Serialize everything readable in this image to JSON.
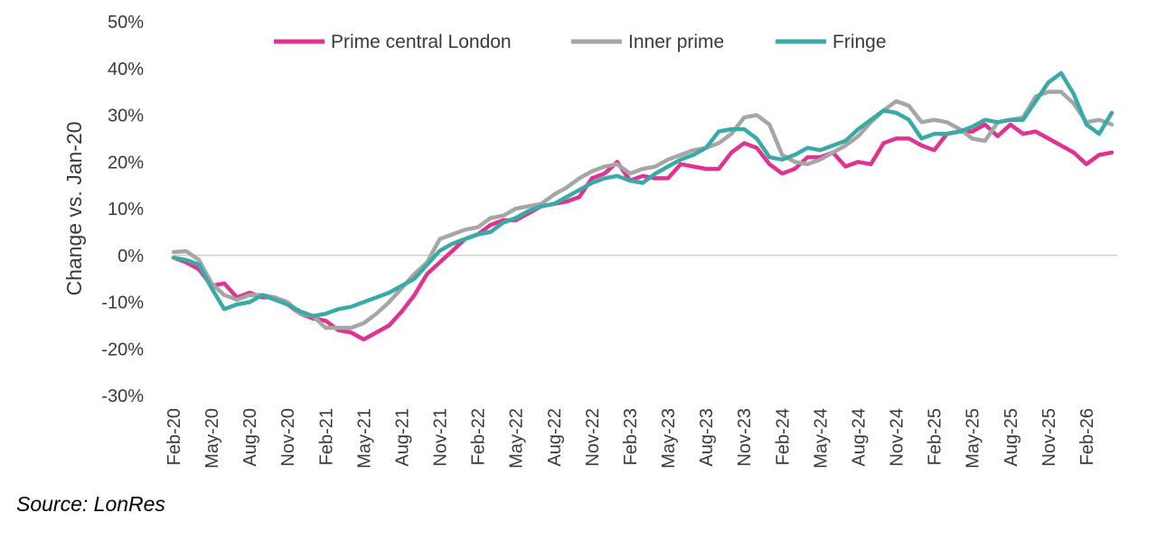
{
  "chart_data": {
    "type": "line",
    "title": "",
    "ylabel": "Change vs. Jan-20",
    "xlabel": "",
    "ylim": [
      -30,
      50
    ],
    "yticks": [
      -30,
      -20,
      -10,
      0,
      10,
      20,
      30,
      40,
      50
    ],
    "ytick_labels": [
      "-30%",
      "-20%",
      "-10%",
      "0%",
      "10%",
      "20%",
      "30%",
      "40%",
      "50%"
    ],
    "x_start": "Feb-20",
    "x_tick_labels": [
      "Feb-20",
      "May-20",
      "Aug-20",
      "Nov-20",
      "Feb-21",
      "May-21",
      "Aug-21",
      "Nov-21",
      "Feb-22",
      "May-22",
      "Aug-22",
      "Nov-22",
      "Feb-23",
      "May-23",
      "Aug-23",
      "Nov-23",
      "Feb-24",
      "May-24",
      "Aug-24",
      "Nov-24",
      "Feb-25",
      "May-25",
      "Aug-25",
      "Nov-25",
      "Feb-26"
    ],
    "legend_position": "top",
    "series": [
      {
        "name": "Prime central London",
        "color": "#e0338f",
        "values": [
          -0.5,
          -1.5,
          -3,
          -6.5,
          -6,
          -9,
          -8,
          -9,
          -9,
          -10.5,
          -12.5,
          -13.5,
          -14,
          -16,
          -16.5,
          -18,
          -16.5,
          -15,
          -12,
          -8.5,
          -4,
          -1.5,
          1,
          3.5,
          4.5,
          6.5,
          7.5,
          7.5,
          9,
          10.5,
          11,
          11.5,
          12.5,
          16.5,
          17.5,
          20,
          16,
          17,
          16.5,
          16.5,
          19.5,
          19,
          18.5,
          18.5,
          22,
          24,
          23,
          19.5,
          17.5,
          18.5,
          21,
          21,
          22,
          19,
          20,
          19.5,
          24,
          25,
          25,
          23.5,
          22.5,
          26,
          26.5,
          26.5,
          28,
          25.5,
          28,
          26,
          26.5,
          25,
          23.5,
          22,
          19.5,
          21.5,
          22
        ]
      },
      {
        "name": "Inner prime",
        "color": "#a6a6a6",
        "values": [
          0.7,
          0.9,
          -1,
          -6,
          -8.5,
          -9.5,
          -8.5,
          -8.5,
          -9,
          -10,
          -12.5,
          -13,
          -15.5,
          -15.5,
          -15.5,
          -14.5,
          -12.5,
          -10,
          -7,
          -4,
          -1.5,
          3.5,
          4.5,
          5.5,
          6,
          8,
          8.5,
          10,
          10.5,
          11,
          13,
          14.5,
          16.5,
          18,
          19,
          19.5,
          17.5,
          18.5,
          19,
          20.5,
          21.5,
          22.5,
          23,
          24,
          26,
          29.5,
          30,
          28,
          21.5,
          20,
          19.5,
          20.5,
          22,
          23.5,
          25.5,
          28.5,
          31,
          33,
          32,
          28.5,
          29,
          28.5,
          27,
          25,
          24.5,
          28.5,
          29,
          29.5,
          34,
          35,
          35,
          32.5,
          28.5,
          29,
          28
        ]
      },
      {
        "name": "Fringe",
        "color": "#3aaaa6",
        "values": [
          -0.5,
          -1,
          -2,
          -7,
          -11.5,
          -10.5,
          -10,
          -8.5,
          -9.5,
          -10.5,
          -12,
          -13,
          -12.5,
          -11.5,
          -11,
          -10,
          -9,
          -8,
          -6.5,
          -5,
          -2,
          1,
          2.5,
          3.5,
          4.5,
          5,
          7,
          8,
          9.5,
          10.5,
          11,
          12.5,
          14,
          15.5,
          16.5,
          17,
          16,
          15.5,
          17.5,
          19,
          20.5,
          21.5,
          23,
          26.5,
          27,
          27,
          25,
          21,
          20.5,
          21.5,
          23,
          22.5,
          23.5,
          24.5,
          27,
          29,
          31,
          30.5,
          29,
          25,
          26,
          26,
          26.5,
          27.5,
          29,
          28.5,
          29,
          29,
          33,
          37,
          39,
          34.5,
          28,
          26,
          30.5
        ]
      }
    ]
  },
  "source": "Source: LonRes"
}
